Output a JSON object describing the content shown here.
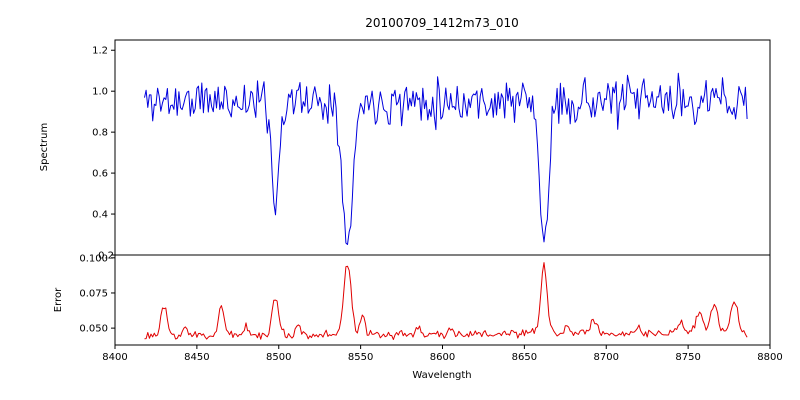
{
  "title": "20100709_1412m73_010",
  "chart_data": [
    {
      "type": "line",
      "name": "spectrum",
      "color": "#0000dd",
      "ylabel": "Spectrum",
      "xlim": [
        8400,
        8800
      ],
      "ylim": [
        0.2,
        1.25
      ],
      "yticks": [
        {
          "v": 1.2,
          "label": "1.2"
        },
        {
          "v": 1.0,
          "label": "1.0"
        },
        {
          "v": 0.8,
          "label": "0.8"
        },
        {
          "v": 0.6,
          "label": "0.6"
        },
        {
          "v": 0.4,
          "label": "0.4"
        },
        {
          "v": 0.2,
          "label": "0.2",
          "dx": 6
        }
      ],
      "generator": {
        "x_start": 8418,
        "x_end": 8786,
        "step": 1,
        "baseline": 0.952,
        "noise_sigma": 0.055,
        "seed": 11
      },
      "absorption_lines": [
        {
          "center": 8498.0,
          "min": 0.44,
          "width": 2.2
        },
        {
          "center": 8542.1,
          "min": 0.27,
          "width": 3.2
        },
        {
          "center": 8662.1,
          "min": 0.27,
          "width": 2.8
        }
      ]
    },
    {
      "type": "line",
      "name": "error",
      "color": "#e00000",
      "ylabel": "Error",
      "xlabel": "Wavelength",
      "xlim": [
        8400,
        8800
      ],
      "ylim": [
        0.038,
        0.102
      ],
      "yticks": [
        {
          "v": 0.1,
          "label": "0.100"
        },
        {
          "v": 0.075,
          "label": "0.075"
        },
        {
          "v": 0.05,
          "label": "0.050"
        }
      ],
      "xticks": [
        {
          "v": 8400,
          "label": "8400"
        },
        {
          "v": 8450,
          "label": "8450"
        },
        {
          "v": 8500,
          "label": "8500"
        },
        {
          "v": 8550,
          "label": "8550"
        },
        {
          "v": 8600,
          "label": "8600"
        },
        {
          "v": 8650,
          "label": "8650"
        },
        {
          "v": 8700,
          "label": "8700"
        },
        {
          "v": 8750,
          "label": "8750"
        },
        {
          "v": 8800,
          "label": "8800"
        }
      ],
      "generator": {
        "x_start": 8418,
        "x_end": 8786,
        "step": 1,
        "baseline": 0.0445,
        "noise_sigma": 0.0015,
        "slope": 6e-06,
        "seed": 23
      },
      "peaks": [
        {
          "center": 8430,
          "amp": 0.02,
          "width": 1.8
        },
        {
          "center": 8443,
          "amp": 0.006,
          "width": 1.5
        },
        {
          "center": 8465,
          "amp": 0.021,
          "width": 1.8
        },
        {
          "center": 8480,
          "amp": 0.007,
          "width": 1.5
        },
        {
          "center": 8498,
          "amp": 0.026,
          "width": 2.0
        },
        {
          "center": 8512,
          "amp": 0.008,
          "width": 1.5
        },
        {
          "center": 8542,
          "amp": 0.052,
          "width": 2.2
        },
        {
          "center": 8551,
          "amp": 0.012,
          "width": 1.5
        },
        {
          "center": 8585,
          "amp": 0.006,
          "width": 1.5
        },
        {
          "center": 8605,
          "amp": 0.004,
          "width": 1.5
        },
        {
          "center": 8662,
          "amp": 0.048,
          "width": 2.0
        },
        {
          "center": 8676,
          "amp": 0.006,
          "width": 1.5
        },
        {
          "center": 8692,
          "amp": 0.009,
          "width": 1.8
        },
        {
          "center": 8720,
          "amp": 0.004,
          "width": 1.5
        },
        {
          "center": 8745,
          "amp": 0.007,
          "width": 1.8
        },
        {
          "center": 8757,
          "amp": 0.014,
          "width": 2.0
        },
        {
          "center": 8766,
          "amp": 0.022,
          "width": 2.0
        },
        {
          "center": 8778,
          "amp": 0.024,
          "width": 2.0
        }
      ]
    }
  ]
}
